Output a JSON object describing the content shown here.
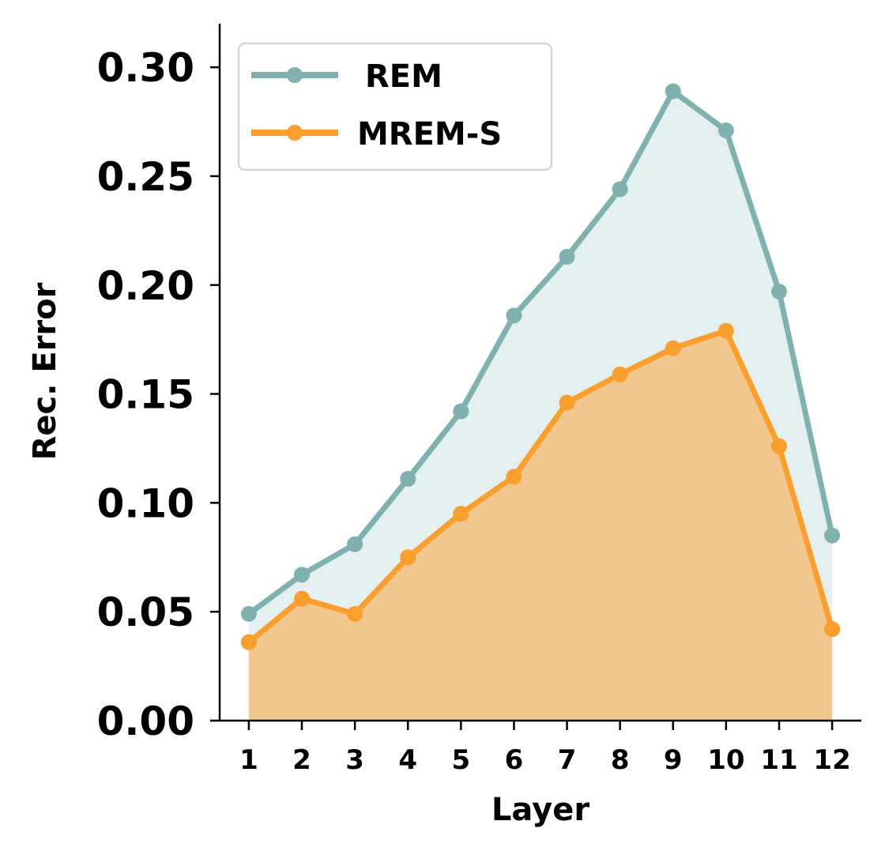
{
  "chart_data": {
    "type": "line",
    "title": "",
    "xlabel": "Layer",
    "ylabel": "Rec. Error",
    "x": [
      1,
      2,
      3,
      4,
      5,
      6,
      7,
      8,
      9,
      10,
      11,
      12
    ],
    "x_tick_labels": [
      "1",
      "2",
      "3",
      "4",
      "5",
      "6",
      "7",
      "8",
      "9",
      "10",
      "11",
      "12"
    ],
    "y_ticks": [
      0.0,
      0.05,
      0.1,
      0.15,
      0.2,
      0.25,
      0.3
    ],
    "y_tick_labels": [
      "0.00",
      "0.05",
      "0.10",
      "0.15",
      "0.20",
      "0.25",
      "0.30"
    ],
    "ylim": [
      0,
      0.32
    ],
    "xlim": [
      0.45,
      12.55
    ],
    "grid": false,
    "legend_position": "top-left",
    "series": [
      {
        "name": "REM",
        "color": "#7fb1b0",
        "fill_color": "#e4efef",
        "values": [
          0.049,
          0.067,
          0.081,
          0.111,
          0.142,
          0.186,
          0.213,
          0.244,
          0.289,
          0.271,
          0.197,
          0.085
        ]
      },
      {
        "name": "MREM-S",
        "color": "#fa9e2c",
        "fill_color": "#f1c78e",
        "values": [
          0.036,
          0.056,
          0.049,
          0.075,
          0.095,
          0.112,
          0.146,
          0.159,
          0.171,
          0.179,
          0.126,
          0.042
        ]
      }
    ]
  }
}
